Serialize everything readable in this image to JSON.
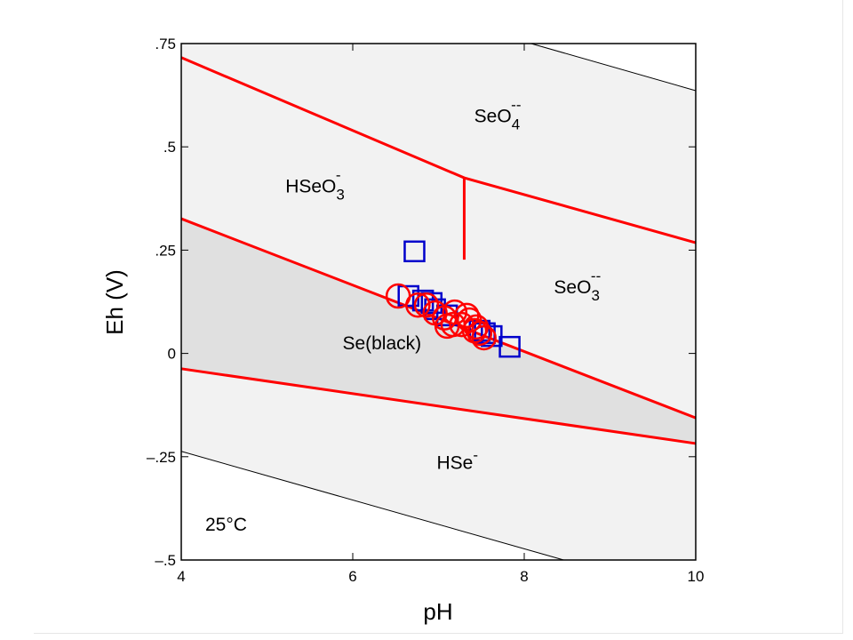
{
  "chart_data": {
    "type": "scatter",
    "title": "",
    "xlabel": "pH",
    "ylabel": "Eh (V)",
    "xlim": [
      4,
      10
    ],
    "ylim": [
      -0.5,
      0.75
    ],
    "x_ticks": [
      4,
      6,
      8,
      10
    ],
    "x_tick_labels": [
      "4",
      "6",
      "8",
      "10"
    ],
    "y_ticks": [
      0.75,
      0.5,
      0.25,
      0,
      -0.25,
      -0.5
    ],
    "y_tick_labels": [
      ".75",
      ".5",
      ".25",
      "0",
      "–.25",
      "–.5"
    ],
    "grid": false,
    "temperature_label": "25°C",
    "colors": {
      "boundary": "#ff0000",
      "water": "#000000",
      "squares": "#0000cc",
      "circles": "#ff0000",
      "field": "#f2f2f2",
      "se_field": "#e0e0e0"
    },
    "boundaries": [
      {
        "name": "HSeO3-/SeO4-- and SeO3--/SeO4--",
        "points": [
          [
            4,
            0.716
          ],
          [
            7.3,
            0.425
          ],
          [
            10,
            0.268
          ]
        ]
      },
      {
        "name": "HSeO3-/SeO3--",
        "points": [
          [
            7.3,
            0.425
          ],
          [
            7.3,
            0.227
          ]
        ]
      },
      {
        "name": "Se(black)/oxidized",
        "points": [
          [
            4,
            0.326
          ],
          [
            10,
            -0.156
          ]
        ]
      },
      {
        "name": "Se(black)/HSe-",
        "points": [
          [
            4,
            -0.037
          ],
          [
            10,
            -0.218
          ]
        ]
      }
    ],
    "water_limits": [
      {
        "name": "O2/H2O",
        "points": [
          [
            8.08,
            0.75
          ],
          [
            10,
            0.636
          ]
        ]
      },
      {
        "name": "H2O/H2",
        "points": [
          [
            4,
            -0.237
          ],
          [
            8.46,
            -0.5
          ]
        ]
      }
    ],
    "fields": [
      {
        "base": "SeO",
        "sub": "4",
        "sup": "--",
        "pH": 7.69,
        "Eh": 0.56
      },
      {
        "base": "HSeO",
        "sub": "3",
        "sup": "-",
        "pH": 5.56,
        "Eh": 0.39
      },
      {
        "base": "SeO",
        "sub": "3",
        "sup": "--",
        "pH": 8.62,
        "Eh": 0.145
      },
      {
        "base": "Se(black)",
        "sub": "",
        "sup": "",
        "pH": 6.34,
        "Eh": 0.01
      },
      {
        "base": "HSe",
        "sub": "",
        "sup": "-",
        "pH": 7.22,
        "Eh": -0.28
      }
    ],
    "series": [
      {
        "name": "squares",
        "marker": "square",
        "points": [
          [
            6.72,
            0.247
          ],
          [
            6.65,
            0.139
          ],
          [
            6.82,
            0.128
          ],
          [
            6.92,
            0.122
          ],
          [
            6.96,
            0.107
          ],
          [
            7.1,
            0.092
          ],
          [
            7.48,
            0.055
          ],
          [
            7.62,
            0.042
          ],
          [
            7.83,
            0.016
          ],
          [
            7.54,
            0.049
          ]
        ]
      },
      {
        "name": "circles",
        "marker": "circle",
        "points": [
          [
            6.53,
            0.139
          ],
          [
            6.76,
            0.117
          ],
          [
            6.86,
            0.117
          ],
          [
            6.96,
            0.098
          ],
          [
            7.07,
            0.086
          ],
          [
            7.19,
            0.1
          ],
          [
            7.17,
            0.07
          ],
          [
            7.27,
            0.07
          ],
          [
            7.36,
            0.081
          ],
          [
            7.44,
            0.064
          ],
          [
            7.42,
            0.055
          ],
          [
            7.53,
            0.038
          ],
          [
            7.48,
            0.049
          ],
          [
            7.33,
            0.092
          ],
          [
            7.1,
            0.066
          ]
        ]
      }
    ]
  }
}
